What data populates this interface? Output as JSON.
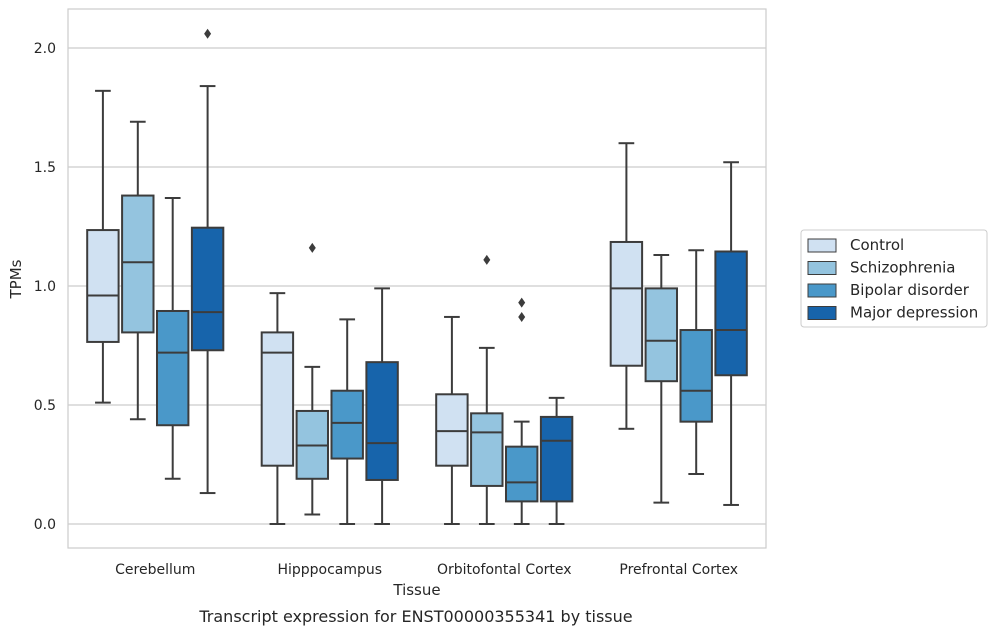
{
  "chart_data": {
    "type": "box",
    "caption": "Transcript expression for ENST00000355341 by tissue",
    "xlabel": "Tissue",
    "ylabel": "TPMs",
    "ylim": [
      -0.1,
      2.17
    ],
    "yticks": [
      0.0,
      0.5,
      1.0,
      1.5,
      2.0
    ],
    "ytick_labels": [
      "0.0",
      "0.5",
      "1.0",
      "1.5",
      "2.0"
    ],
    "grid": "horizontal",
    "legend_position": "right",
    "categories": [
      "Cerebellum",
      "Hipppocampus",
      "Orbitofontal Cortex",
      "Prefrontal Cortex"
    ],
    "series": [
      {
        "name": "Control",
        "color": "#d0e1f2",
        "boxes": [
          {
            "whislo": 0.51,
            "q1": 0.765,
            "med": 0.96,
            "q3": 1.235,
            "whishi": 1.82,
            "fliers": []
          },
          {
            "whislo": 0.0,
            "q1": 0.245,
            "med": 0.72,
            "q3": 0.805,
            "whishi": 0.97,
            "fliers": []
          },
          {
            "whislo": 0.0,
            "q1": 0.245,
            "med": 0.39,
            "q3": 0.545,
            "whishi": 0.87,
            "fliers": []
          },
          {
            "whislo": 0.4,
            "q1": 0.665,
            "med": 0.99,
            "q3": 1.185,
            "whishi": 1.6,
            "fliers": []
          }
        ]
      },
      {
        "name": "Schizophrenia",
        "color": "#94c4df",
        "boxes": [
          {
            "whislo": 0.44,
            "q1": 0.805,
            "med": 1.1,
            "q3": 1.38,
            "whishi": 1.69,
            "fliers": []
          },
          {
            "whislo": 0.04,
            "q1": 0.19,
            "med": 0.33,
            "q3": 0.475,
            "whishi": 0.66,
            "fliers": [
              1.16
            ]
          },
          {
            "whislo": 0.0,
            "q1": 0.16,
            "med": 0.385,
            "q3": 0.465,
            "whishi": 0.74,
            "fliers": [
              1.11
            ]
          },
          {
            "whislo": 0.09,
            "q1": 0.6,
            "med": 0.77,
            "q3": 0.99,
            "whishi": 1.13,
            "fliers": []
          }
        ]
      },
      {
        "name": "Bipolar disorder",
        "color": "#4a98c9",
        "boxes": [
          {
            "whislo": 0.19,
            "q1": 0.415,
            "med": 0.72,
            "q3": 0.895,
            "whishi": 1.37,
            "fliers": []
          },
          {
            "whislo": 0.0,
            "q1": 0.275,
            "med": 0.425,
            "q3": 0.56,
            "whishi": 0.86,
            "fliers": []
          },
          {
            "whislo": 0.0,
            "q1": 0.095,
            "med": 0.175,
            "q3": 0.325,
            "whishi": 0.43,
            "fliers": [
              0.93,
              0.87
            ]
          },
          {
            "whislo": 0.21,
            "q1": 0.43,
            "med": 0.56,
            "q3": 0.815,
            "whishi": 1.15,
            "fliers": []
          }
        ]
      },
      {
        "name": "Major depression",
        "color": "#1764ab",
        "boxes": [
          {
            "whislo": 0.13,
            "q1": 0.73,
            "med": 0.89,
            "q3": 1.245,
            "whishi": 1.84,
            "fliers": [
              2.06
            ]
          },
          {
            "whislo": 0.0,
            "q1": 0.185,
            "med": 0.34,
            "q3": 0.68,
            "whishi": 0.99,
            "fliers": []
          },
          {
            "whislo": 0.0,
            "q1": 0.095,
            "med": 0.35,
            "q3": 0.45,
            "whishi": 0.53,
            "fliers": []
          },
          {
            "whislo": 0.08,
            "q1": 0.625,
            "med": 0.815,
            "q3": 1.145,
            "whishi": 1.52,
            "fliers": []
          }
        ]
      }
    ]
  }
}
